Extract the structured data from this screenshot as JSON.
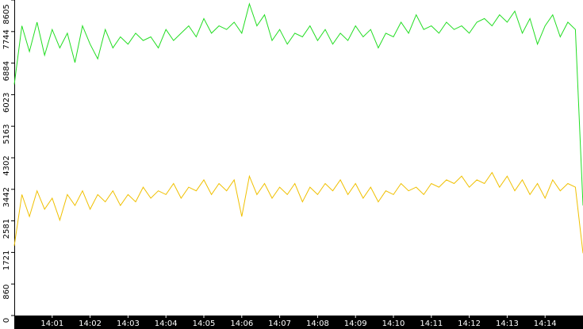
{
  "chart_data": {
    "type": "line",
    "x": [
      0,
      0.2,
      0.4,
      0.6,
      0.8,
      1,
      1.2,
      1.4,
      1.6,
      1.8,
      2,
      2.2,
      2.4,
      2.6,
      2.8,
      3,
      3.2,
      3.4,
      3.6,
      3.8,
      4,
      4.2,
      4.4,
      4.6,
      4.8,
      5,
      5.2,
      5.4,
      5.6,
      5.8,
      6,
      6.2,
      6.4,
      6.6,
      6.8,
      7,
      7.2,
      7.4,
      7.6,
      7.8,
      8,
      8.2,
      8.4,
      8.6,
      8.8,
      9,
      9.2,
      9.4,
      9.6,
      9.8,
      10,
      10.2,
      10.4,
      10.6,
      10.8,
      11,
      11.2,
      11.4,
      11.6,
      11.8,
      12,
      12.2,
      12.4,
      12.6,
      12.8,
      13,
      13.2,
      13.4,
      13.6,
      13.8,
      14,
      14.2,
      14.4,
      14.6,
      14.8,
      15
    ],
    "series": [
      {
        "color": "#22dd22",
        "values": [
          6300,
          7900,
          7200,
          8000,
          7100,
          7800,
          7300,
          7700,
          6900,
          7900,
          7400,
          7000,
          7800,
          7300,
          7600,
          7400,
          7700,
          7500,
          7600,
          7300,
          7800,
          7500,
          7700,
          7900,
          7600,
          8100,
          7700,
          7900,
          7800,
          8000,
          7700,
          8500,
          7900,
          8200,
          7500,
          7800,
          7400,
          7700,
          7600,
          7900,
          7500,
          7800,
          7400,
          7700,
          7500,
          7900,
          7600,
          7800,
          7300,
          7700,
          7600,
          8000,
          7700,
          8200,
          7800,
          7900,
          7700,
          8000,
          7800,
          7900,
          7700,
          8000,
          8100,
          7900,
          8200,
          8000,
          8300,
          7700,
          8100,
          7400,
          7900,
          8200,
          7600,
          8000,
          7800,
          3000
        ]
      },
      {
        "color": "#f0c000",
        "values": [
          1900,
          3300,
          2700,
          3400,
          2900,
          3200,
          2600,
          3300,
          3000,
          3400,
          2900,
          3300,
          3100,
          3400,
          3000,
          3300,
          3100,
          3500,
          3200,
          3400,
          3300,
          3600,
          3200,
          3500,
          3400,
          3700,
          3300,
          3600,
          3400,
          3700,
          2700,
          3800,
          3300,
          3600,
          3200,
          3500,
          3300,
          3600,
          3100,
          3500,
          3300,
          3600,
          3400,
          3700,
          3300,
          3600,
          3200,
          3500,
          3100,
          3400,
          3300,
          3600,
          3400,
          3500,
          3300,
          3600,
          3500,
          3700,
          3600,
          3800,
          3500,
          3700,
          3600,
          3900,
          3500,
          3800,
          3400,
          3700,
          3300,
          3600,
          3200,
          3700,
          3400,
          3600,
          3500,
          1700
        ]
      }
    ],
    "xlim": [
      0,
      15
    ],
    "xticks": [
      {
        "value": 1,
        "label": "14:01"
      },
      {
        "value": 2,
        "label": "14:02"
      },
      {
        "value": 3,
        "label": "14:03"
      },
      {
        "value": 4,
        "label": "14:04"
      },
      {
        "value": 5,
        "label": "14:05"
      },
      {
        "value": 6,
        "label": "14:06"
      },
      {
        "value": 7,
        "label": "14:07"
      },
      {
        "value": 8,
        "label": "14:08"
      },
      {
        "value": 9,
        "label": "14:09"
      },
      {
        "value": 10,
        "label": "14:10"
      },
      {
        "value": 11,
        "label": "14:11"
      },
      {
        "value": 12,
        "label": "14:12"
      },
      {
        "value": 13,
        "label": "14:13"
      },
      {
        "value": 14,
        "label": "14:14"
      }
    ],
    "ylim": [
      0,
      8605
    ],
    "yticks": [
      0,
      860,
      1721,
      2581,
      3442,
      4302,
      5163,
      6023,
      6884,
      7744,
      8605
    ]
  }
}
